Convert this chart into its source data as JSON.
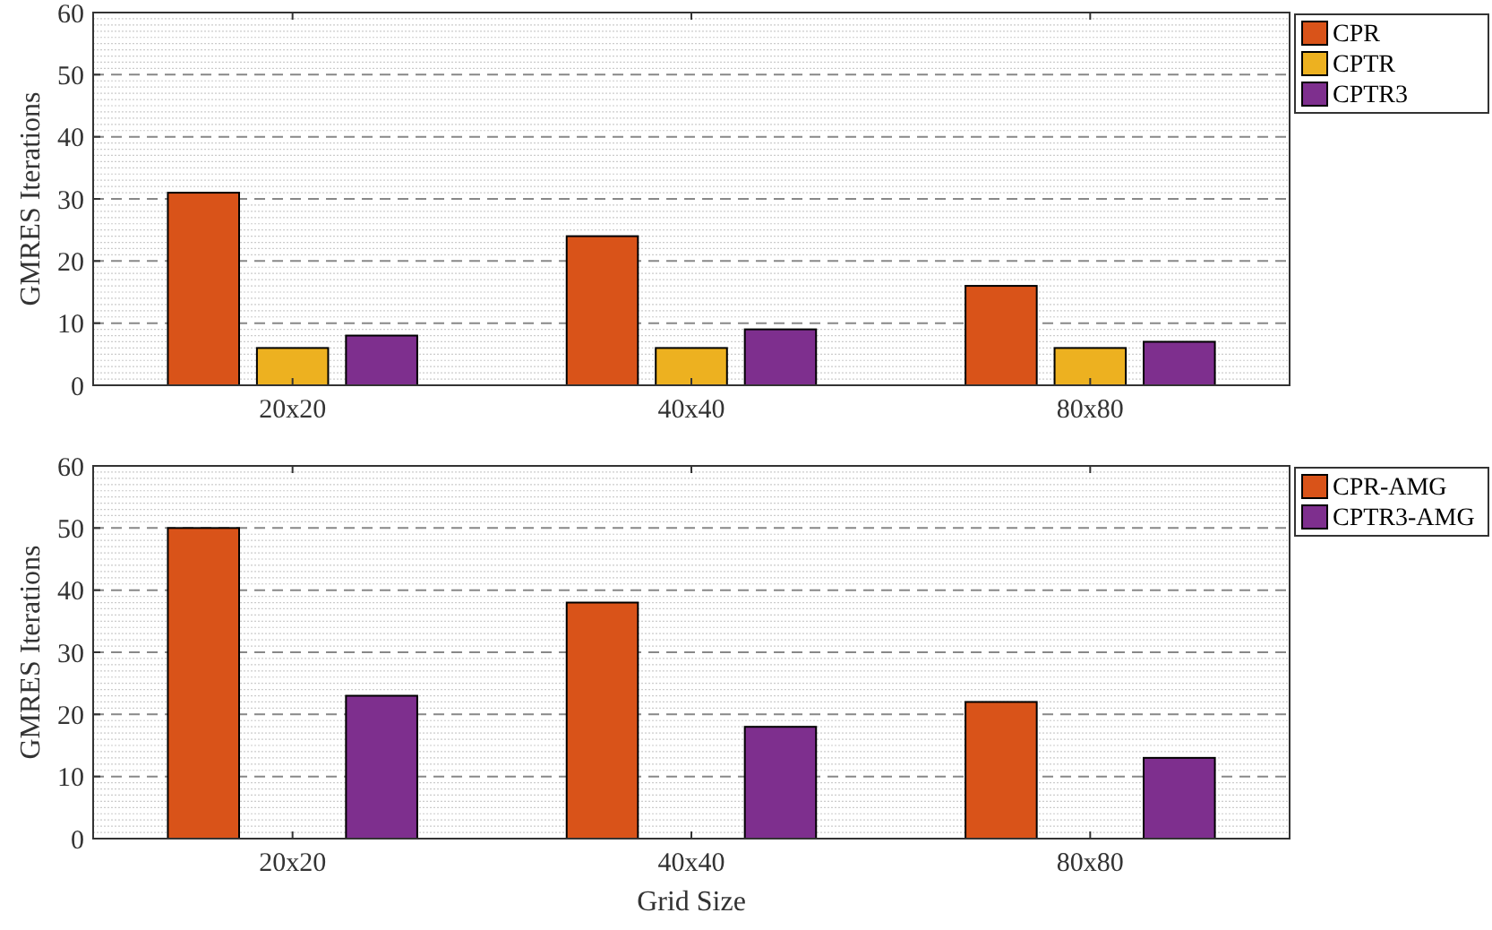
{
  "chart_data": [
    {
      "type": "bar",
      "ylabel": "GMRES Iterations",
      "categories": [
        "20x20",
        "40x40",
        "80x80"
      ],
      "ylim": [
        0,
        60
      ],
      "yticks": [
        0,
        10,
        20,
        30,
        40,
        50,
        60
      ],
      "grid": true,
      "legend": "top right",
      "series": [
        {
          "name": "CPR",
          "color": "#d95319",
          "values": [
            31,
            24,
            16
          ]
        },
        {
          "name": "CPTR",
          "color": "#edb120",
          "values": [
            6,
            6,
            6
          ]
        },
        {
          "name": "CPTR3",
          "color": "#7e2f8e",
          "values": [
            8,
            9,
            7
          ]
        }
      ]
    },
    {
      "type": "bar",
      "ylabel": "GMRES Iterations",
      "xlabel": "Grid Size",
      "categories": [
        "20x20",
        "40x40",
        "80x80"
      ],
      "ylim": [
        0,
        60
      ],
      "yticks": [
        0,
        10,
        20,
        30,
        40,
        50,
        60
      ],
      "grid": true,
      "legend": "top right",
      "series": [
        {
          "name": "CPR-AMG",
          "color": "#d95319",
          "values": [
            50,
            38,
            22
          ]
        },
        {
          "values": [
            null,
            null,
            null
          ]
        },
        {
          "name": "CPTR3-AMG",
          "color": "#7e2f8e",
          "values": [
            23,
            18,
            13
          ]
        }
      ]
    }
  ]
}
